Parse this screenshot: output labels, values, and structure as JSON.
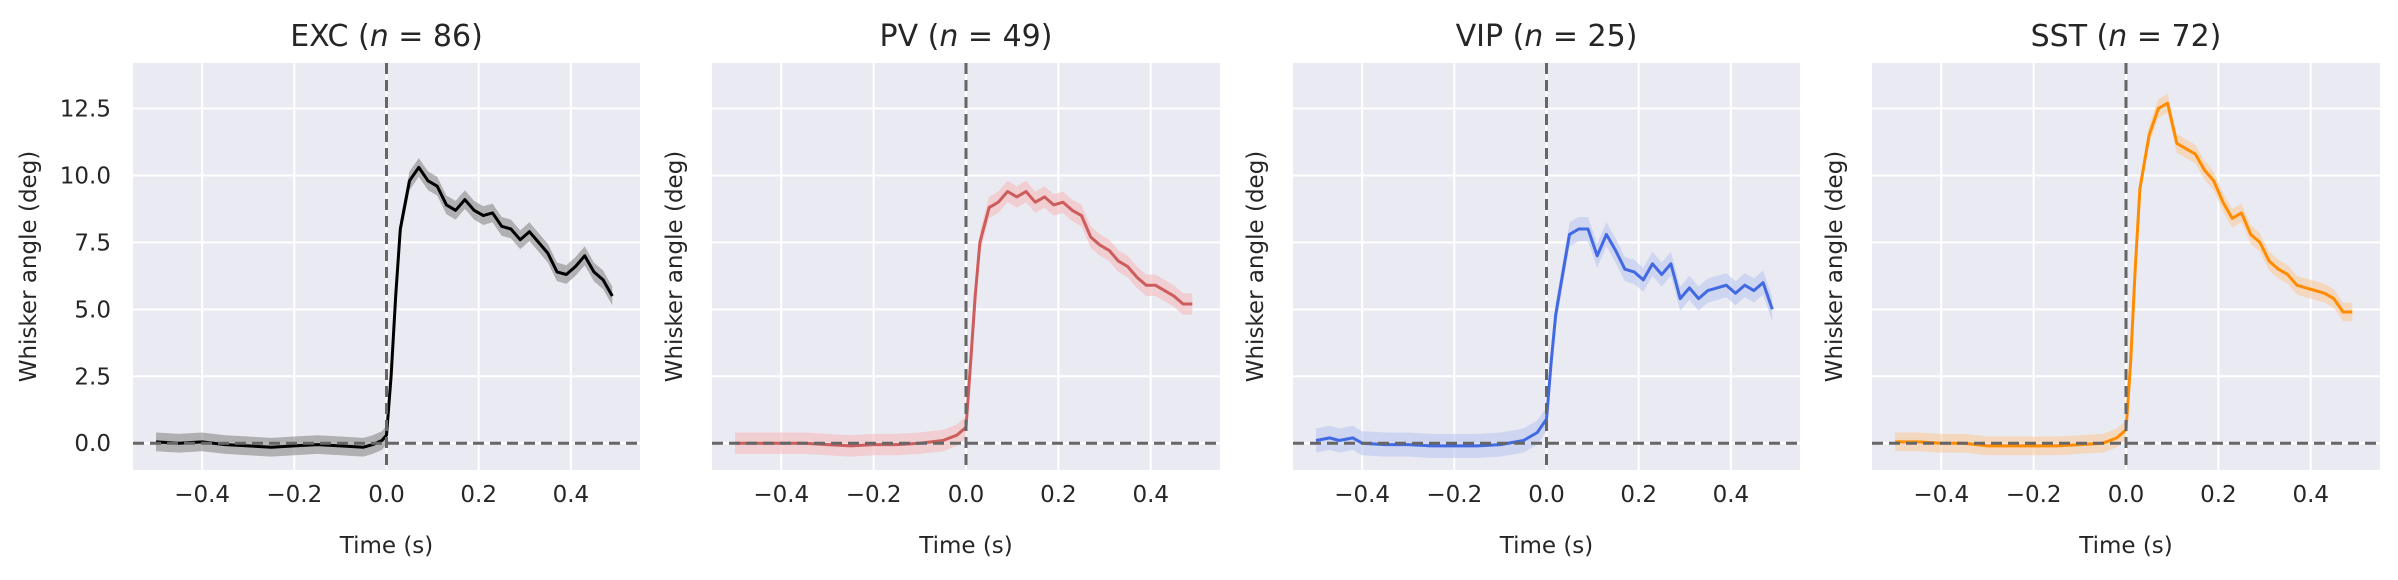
{
  "chart_data": [
    {
      "type": "line",
      "title_name": "EXC",
      "title_n": "86",
      "xlabel": "Time (s)",
      "ylabel": "Whisker angle (deg)",
      "xlim": [
        -0.55,
        0.55
      ],
      "ylim": [
        -1.0,
        14.2
      ],
      "xticks": [
        -0.4,
        -0.2,
        0.0,
        0.2,
        0.4
      ],
      "xtick_labels": [
        "−0.4",
        "−0.2",
        "0.0",
        "0.2",
        "0.4"
      ],
      "yticks": [
        0.0,
        2.5,
        5.0,
        7.5,
        10.0,
        12.5
      ],
      "ytick_labels": [
        "0.0",
        "2.5",
        "5.0",
        "7.5",
        "10.0",
        "12.5"
      ],
      "show_ytick_labels": true,
      "grid": true,
      "color": "#000000",
      "band_color": "#808080",
      "band_halfwidth": 0.35,
      "vline_x": 0.0,
      "hline_y": 0.0,
      "x": [
        -0.5,
        -0.45,
        -0.4,
        -0.35,
        -0.3,
        -0.25,
        -0.2,
        -0.15,
        -0.1,
        -0.05,
        -0.03,
        -0.01,
        0.0,
        0.01,
        0.02,
        0.03,
        0.05,
        0.07,
        0.09,
        0.11,
        0.13,
        0.15,
        0.17,
        0.19,
        0.21,
        0.23,
        0.25,
        0.27,
        0.29,
        0.31,
        0.33,
        0.35,
        0.37,
        0.39,
        0.41,
        0.43,
        0.45,
        0.47,
        0.49
      ],
      "y": [
        0.05,
        0.0,
        0.05,
        -0.05,
        -0.1,
        -0.15,
        -0.1,
        -0.05,
        -0.1,
        -0.15,
        -0.05,
        0.1,
        0.3,
        2.5,
        5.5,
        8.0,
        9.8,
        10.3,
        9.8,
        9.6,
        8.9,
        8.7,
        9.1,
        8.7,
        8.5,
        8.6,
        8.1,
        8.0,
        7.6,
        7.9,
        7.5,
        7.1,
        6.4,
        6.3,
        6.6,
        7.0,
        6.4,
        6.1,
        5.5
      ]
    },
    {
      "type": "line",
      "title_name": "PV",
      "title_n": "49",
      "xlabel": "Time (s)",
      "ylabel": "Whisker angle (deg)",
      "xlim": [
        -0.55,
        0.55
      ],
      "ylim": [
        -1.0,
        14.2
      ],
      "xticks": [
        -0.4,
        -0.2,
        0.0,
        0.2,
        0.4
      ],
      "xtick_labels": [
        "−0.4",
        "−0.2",
        "0.0",
        "0.2",
        "0.4"
      ],
      "yticks": [
        0.0,
        2.5,
        5.0,
        7.5,
        10.0,
        12.5
      ],
      "ytick_labels": [
        "0.0",
        "2.5",
        "5.0",
        "7.5",
        "10.0",
        "12.5"
      ],
      "show_ytick_labels": false,
      "grid": true,
      "color": "#cd5c5c",
      "band_color": "#f4b6b6",
      "band_halfwidth": 0.4,
      "vline_x": 0.0,
      "hline_y": 0.0,
      "x": [
        -0.5,
        -0.45,
        -0.4,
        -0.35,
        -0.3,
        -0.25,
        -0.2,
        -0.15,
        -0.1,
        -0.05,
        -0.02,
        0.0,
        0.01,
        0.02,
        0.03,
        0.05,
        0.07,
        0.09,
        0.11,
        0.13,
        0.15,
        0.17,
        0.19,
        0.21,
        0.23,
        0.25,
        0.27,
        0.29,
        0.31,
        0.33,
        0.35,
        0.37,
        0.39,
        0.41,
        0.43,
        0.45,
        0.47,
        0.49
      ],
      "y": [
        0.0,
        0.0,
        0.0,
        0.0,
        -0.05,
        -0.1,
        -0.05,
        -0.05,
        0.0,
        0.1,
        0.3,
        0.6,
        3.0,
        5.5,
        7.5,
        8.8,
        9.0,
        9.4,
        9.2,
        9.4,
        9.0,
        9.2,
        8.9,
        9.0,
        8.7,
        8.5,
        7.7,
        7.4,
        7.2,
        6.8,
        6.6,
        6.2,
        5.9,
        5.9,
        5.7,
        5.5,
        5.2,
        5.2
      ]
    },
    {
      "type": "line",
      "title_name": "VIP",
      "title_n": "25",
      "xlabel": "Time (s)",
      "ylabel": "Whisker angle (deg)",
      "xlim": [
        -0.55,
        0.55
      ],
      "ylim": [
        -1.0,
        14.2
      ],
      "xticks": [
        -0.4,
        -0.2,
        0.0,
        0.2,
        0.4
      ],
      "xtick_labels": [
        "−0.4",
        "−0.2",
        "0.0",
        "0.2",
        "0.4"
      ],
      "yticks": [
        0.0,
        2.5,
        5.0,
        7.5,
        10.0,
        12.5
      ],
      "ytick_labels": [
        "0.0",
        "2.5",
        "5.0",
        "7.5",
        "10.0",
        "12.5"
      ],
      "show_ytick_labels": false,
      "grid": true,
      "color": "#4169e1",
      "band_color": "#b7c3f0",
      "band_halfwidth": 0.45,
      "vline_x": 0.0,
      "hline_y": 0.0,
      "x": [
        -0.5,
        -0.47,
        -0.45,
        -0.42,
        -0.4,
        -0.35,
        -0.3,
        -0.25,
        -0.2,
        -0.15,
        -0.1,
        -0.05,
        -0.02,
        0.0,
        0.01,
        0.02,
        0.03,
        0.05,
        0.07,
        0.09,
        0.11,
        0.13,
        0.15,
        0.17,
        0.19,
        0.21,
        0.23,
        0.25,
        0.27,
        0.29,
        0.31,
        0.33,
        0.35,
        0.37,
        0.39,
        0.41,
        0.43,
        0.45,
        0.47,
        0.49
      ],
      "y": [
        0.1,
        0.2,
        0.1,
        0.2,
        0.0,
        -0.05,
        -0.05,
        -0.1,
        -0.1,
        -0.1,
        -0.05,
        0.1,
        0.4,
        0.9,
        3.0,
        4.8,
        5.8,
        7.8,
        8.0,
        8.0,
        7.0,
        7.8,
        7.2,
        6.5,
        6.4,
        6.1,
        6.7,
        6.3,
        6.7,
        5.4,
        5.8,
        5.4,
        5.7,
        5.8,
        5.9,
        5.6,
        5.9,
        5.7,
        6.0,
        5.0
      ]
    },
    {
      "type": "line",
      "title_name": "SST",
      "title_n": "72",
      "xlabel": "Time (s)",
      "ylabel": "Whisker angle (deg)",
      "xlim": [
        -0.55,
        0.55
      ],
      "ylim": [
        -1.0,
        14.2
      ],
      "xticks": [
        -0.4,
        -0.2,
        0.0,
        0.2,
        0.4
      ],
      "xtick_labels": [
        "−0.4",
        "−0.2",
        "0.0",
        "0.2",
        "0.4"
      ],
      "yticks": [
        0.0,
        2.5,
        5.0,
        7.5,
        10.0,
        12.5
      ],
      "ytick_labels": [
        "0.0",
        "2.5",
        "5.0",
        "7.5",
        "10.0",
        "12.5"
      ],
      "show_ytick_labels": false,
      "grid": true,
      "color": "#ff8c00",
      "band_color": "#fbc796",
      "band_halfwidth": 0.35,
      "vline_x": 0.0,
      "hline_y": 0.0,
      "x": [
        -0.5,
        -0.45,
        -0.4,
        -0.35,
        -0.3,
        -0.25,
        -0.2,
        -0.15,
        -0.1,
        -0.05,
        -0.02,
        0.0,
        0.01,
        0.02,
        0.03,
        0.05,
        0.07,
        0.09,
        0.11,
        0.13,
        0.15,
        0.17,
        0.19,
        0.21,
        0.23,
        0.25,
        0.27,
        0.29,
        0.31,
        0.33,
        0.35,
        0.37,
        0.39,
        0.41,
        0.43,
        0.45,
        0.47,
        0.49
      ],
      "y": [
        0.05,
        0.05,
        0.0,
        0.0,
        -0.1,
        -0.1,
        -0.1,
        -0.1,
        -0.05,
        0.0,
        0.2,
        0.5,
        3.0,
        6.5,
        9.5,
        11.5,
        12.5,
        12.7,
        11.2,
        11.0,
        10.8,
        10.2,
        9.8,
        9.0,
        8.4,
        8.6,
        7.8,
        7.5,
        6.8,
        6.5,
        6.3,
        5.9,
        5.8,
        5.7,
        5.6,
        5.4,
        4.9,
        4.9
      ]
    }
  ]
}
